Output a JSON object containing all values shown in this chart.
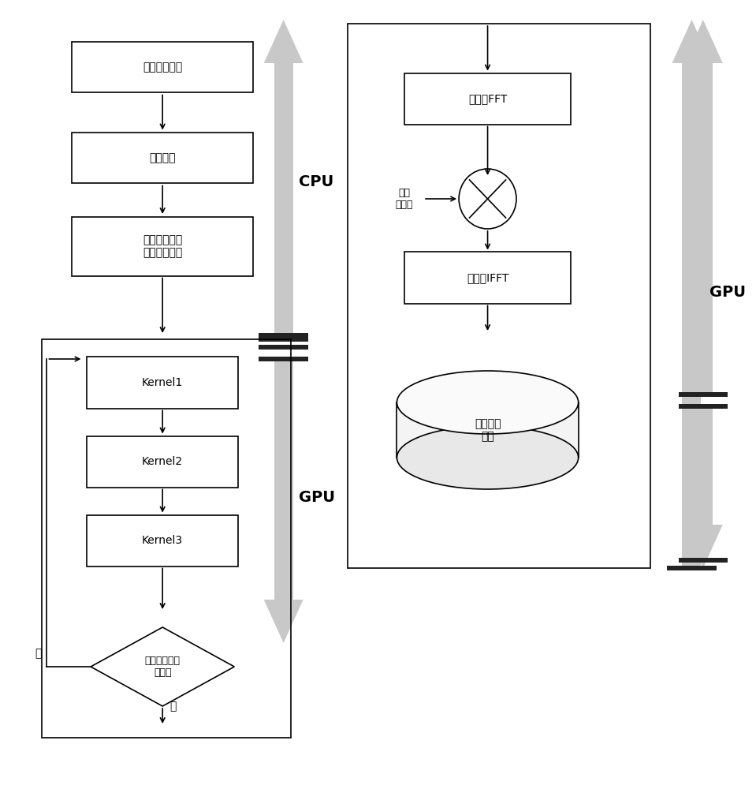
{
  "bg_color": "#ffffff",
  "box_color": "#ffffff",
  "box_edge": "#000000",
  "arrow_color": "#000000",
  "big_arrow_color": "#c8c8c8",
  "bar_color": "#222222",
  "text_color": "#000000",
  "box1_label": "设置雷达参数",
  "box2_label": "设置场景",
  "box3_label": "设置线程网格\n分配全局内存",
  "box4_label": "Kernel1",
  "box5_label": "Kernel2",
  "box6_label": "Kernel3",
  "diamond_label": "遍历所有方位\n时刻？",
  "fft_label": "距离向FFT",
  "ifft_label": "距离向IFFT",
  "cyl_label": "二维回波\n数据",
  "chirp_label": "距离\n调频项",
  "cpu_label": "CPU",
  "gpu_label_left": "GPU",
  "gpu_label_right": "GPU",
  "yes_label": "是",
  "no_label": "否"
}
